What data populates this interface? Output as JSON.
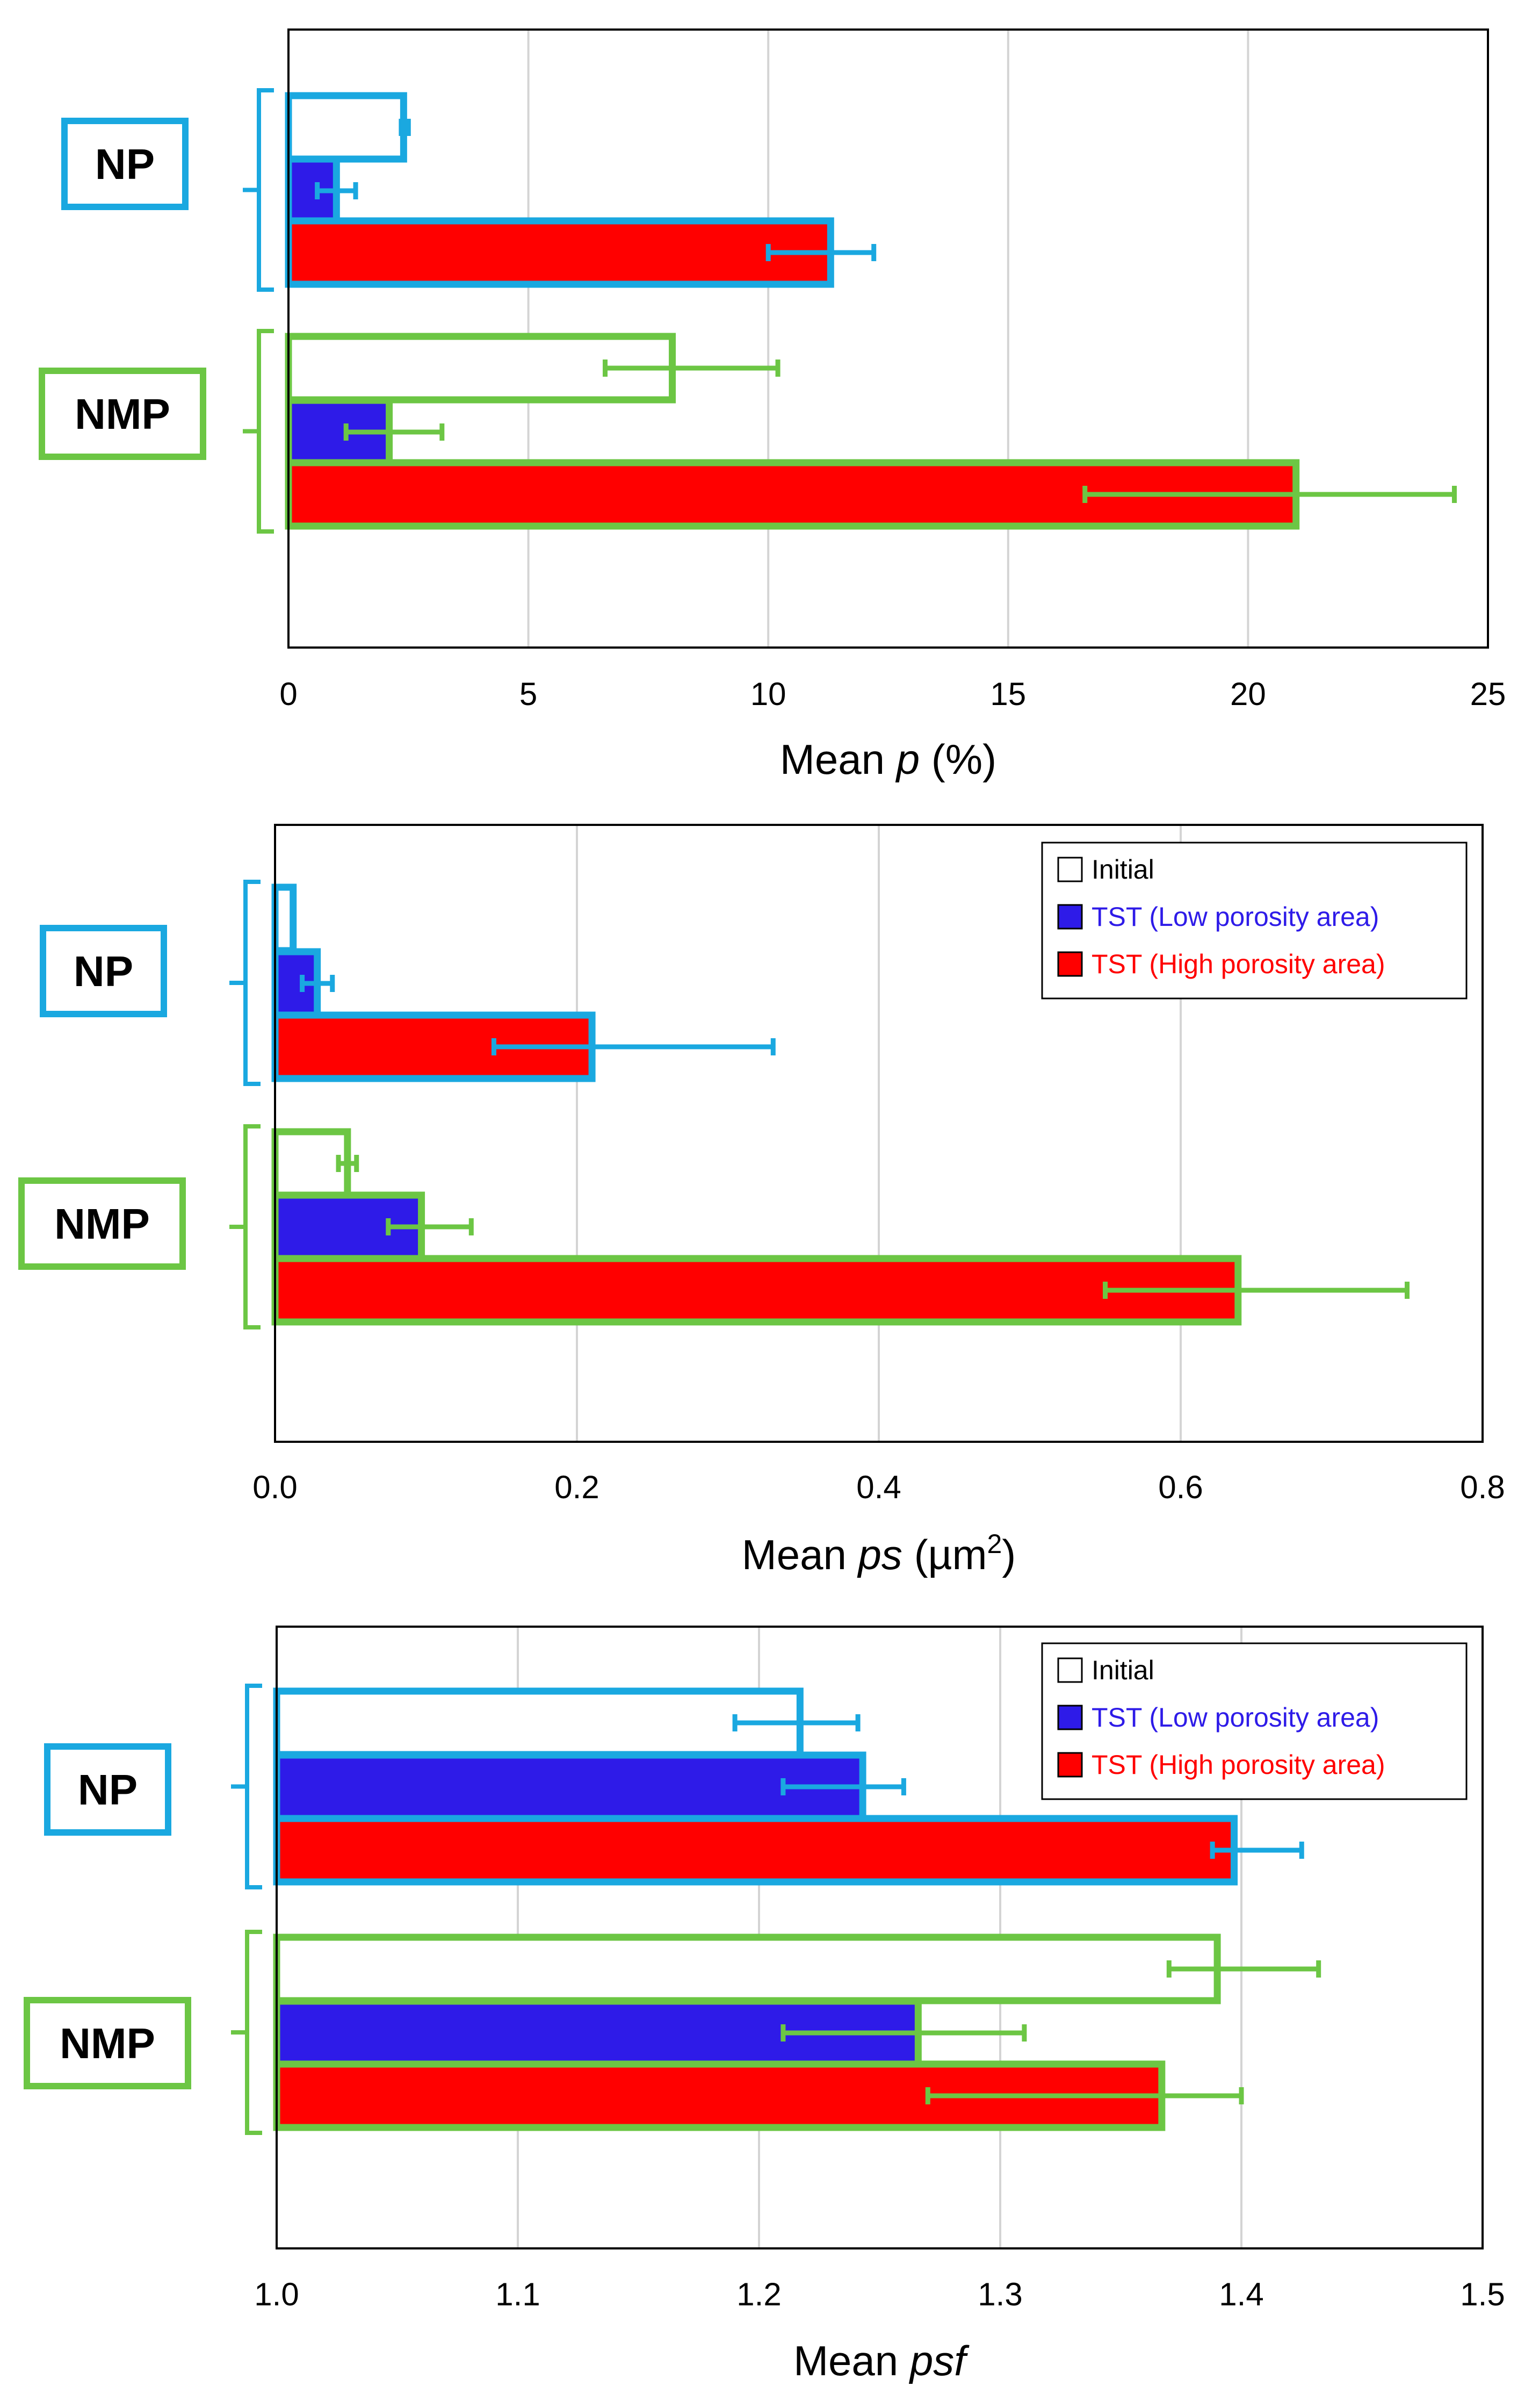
{
  "colors": {
    "np": "#1aa8e0",
    "nmp": "#6cc644",
    "initial_fill": "#ffffff",
    "low_fill": "#2e1be8",
    "high_fill": "#ff0000",
    "grid": "#d4d4d4"
  },
  "chart_data": [
    {
      "type": "bar",
      "orientation": "horizontal",
      "title": "",
      "xlabel_prefix": "Mean ",
      "xlabel_var": "p",
      "xlabel_suffix": " (%)",
      "xlim": [
        0,
        25
      ],
      "xticks": [
        0,
        5,
        10,
        15,
        20,
        25
      ],
      "xtick_labels": [
        "0",
        "5",
        "10",
        "15",
        "20",
        "25"
      ],
      "grid": "vertical",
      "legend": null,
      "groups": [
        {
          "name": "NP",
          "color_key": "np",
          "bars": [
            {
              "series": "Initial",
              "value": 2.4,
              "err_lo": 2.35,
              "err_hi": 2.5
            },
            {
              "series": "TST (Low porosity area)",
              "value": 1.0,
              "err_lo": 0.6,
              "err_hi": 1.4
            },
            {
              "series": "TST (High porosity area)",
              "value": 11.3,
              "err_lo": 10.0,
              "err_hi": 12.2
            }
          ]
        },
        {
          "name": "NMP",
          "color_key": "nmp",
          "bars": [
            {
              "series": "Initial",
              "value": 8.0,
              "err_lo": 6.6,
              "err_hi": 10.2
            },
            {
              "series": "TST (Low porosity area)",
              "value": 2.1,
              "err_lo": 1.2,
              "err_hi": 3.2
            },
            {
              "series": "TST (High porosity area)",
              "value": 21.0,
              "err_lo": 16.6,
              "err_hi": 24.3
            }
          ]
        }
      ]
    },
    {
      "type": "bar",
      "orientation": "horizontal",
      "title": "",
      "xlabel_prefix": "Mean ",
      "xlabel_var": "ps",
      "xlabel_suffix": " (µm",
      "xlabel_sup": "2",
      "xlabel_end": ")",
      "xlim": [
        0,
        0.8
      ],
      "xticks": [
        0,
        0.2,
        0.4,
        0.6,
        0.8
      ],
      "xtick_labels": [
        "0.0",
        "0.2",
        "0.4",
        "0.6",
        "0.8"
      ],
      "grid": "vertical",
      "legend": {
        "position": "top-right",
        "entries": [
          {
            "label": "Initial",
            "fill_key": "initial_fill",
            "text_color": "#000000"
          },
          {
            "label": "TST (Low porosity area)",
            "fill_key": "low_fill",
            "text_color": "#2e1be8"
          },
          {
            "label": "TST (High porosity area)",
            "fill_key": "high_fill",
            "text_color": "#ff0000"
          }
        ]
      },
      "groups": [
        {
          "name": "NP",
          "color_key": "np",
          "bars": [
            {
              "series": "Initial",
              "value": 0.012,
              "err_lo": 0.012,
              "err_hi": 0.012
            },
            {
              "series": "TST (Low porosity area)",
              "value": 0.028,
              "err_lo": 0.018,
              "err_hi": 0.038
            },
            {
              "series": "TST (High porosity area)",
              "value": 0.21,
              "err_lo": 0.145,
              "err_hi": 0.33
            }
          ]
        },
        {
          "name": "NMP",
          "color_key": "nmp",
          "bars": [
            {
              "series": "Initial",
              "value": 0.048,
              "err_lo": 0.042,
              "err_hi": 0.054
            },
            {
              "series": "TST (Low porosity area)",
              "value": 0.097,
              "err_lo": 0.075,
              "err_hi": 0.13
            },
            {
              "series": "TST (High porosity area)",
              "value": 0.638,
              "err_lo": 0.55,
              "err_hi": 0.75
            }
          ]
        }
      ]
    },
    {
      "type": "bar",
      "orientation": "horizontal",
      "title": "",
      "xlabel_prefix": "Mean ",
      "xlabel_var": "psf",
      "xlabel_suffix": "",
      "xlim": [
        1.0,
        1.5
      ],
      "xticks": [
        1.0,
        1.1,
        1.2,
        1.3,
        1.4,
        1.5
      ],
      "xtick_labels": [
        "1.0",
        "1.1",
        "1.2",
        "1.3",
        "1.4",
        "1.5"
      ],
      "grid": "vertical",
      "legend": {
        "position": "top-right",
        "entries": [
          {
            "label": "Initial",
            "fill_key": "initial_fill",
            "text_color": "#000000"
          },
          {
            "label": "TST (Low porosity area)",
            "fill_key": "low_fill",
            "text_color": "#2e1be8"
          },
          {
            "label": "TST (High porosity area)",
            "fill_key": "high_fill",
            "text_color": "#ff0000"
          }
        ]
      },
      "groups": [
        {
          "name": "NP",
          "color_key": "np",
          "bars": [
            {
              "series": "Initial",
              "value": 1.217,
              "err_lo": 1.19,
              "err_hi": 1.241
            },
            {
              "series": "TST (Low porosity area)",
              "value": 1.243,
              "err_lo": 1.21,
              "err_hi": 1.26
            },
            {
              "series": "TST (High porosity area)",
              "value": 1.397,
              "err_lo": 1.388,
              "err_hi": 1.425
            }
          ]
        },
        {
          "name": "NMP",
          "color_key": "nmp",
          "bars": [
            {
              "series": "Initial",
              "value": 1.39,
              "err_lo": 1.37,
              "err_hi": 1.432
            },
            {
              "series": "TST (Low porosity area)",
              "value": 1.266,
              "err_lo": 1.21,
              "err_hi": 1.31
            },
            {
              "series": "TST (High porosity area)",
              "value": 1.367,
              "err_lo": 1.27,
              "err_hi": 1.4
            }
          ]
        }
      ]
    }
  ]
}
